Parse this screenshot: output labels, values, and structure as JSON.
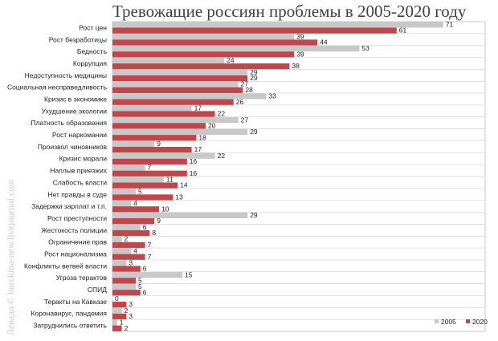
{
  "chart_data": {
    "type": "bar",
    "orientation": "horizontal",
    "title": "Тревожащие россиян проблемы в 2005-2020 году",
    "watermark": "Левада © burckina-new.livejournal.com",
    "categories": [
      "Рост цен",
      "Рост безработицы",
      "Бедность",
      "Коррупция",
      "Недоступность медицины",
      "Социальная несправедливость",
      "Кризис в экономике",
      "Ухудшение экологии",
      "Платность образования",
      "Рост наркомании",
      "Произвол чиновников",
      "Кризис морали",
      "Наплыв приезжих",
      "Слабость власти",
      "Нет правды в суде",
      "Задержки зарплат и т.п.",
      "Рост преступности",
      "Жестокость полиции",
      "Ограничение прав",
      "Рост национализма",
      "Конфликты ветвей власти",
      "Угроза терактов",
      "СПИД",
      "Теракты на Кавказе",
      "Коронавирус, пандемия",
      "Затруднились ответить"
    ],
    "series": [
      {
        "name": "2005",
        "color": "#c8c8c8",
        "values": [
          71,
          39,
          53,
          24,
          29,
          27,
          33,
          17,
          27,
          29,
          9,
          22,
          7,
          11,
          5,
          4,
          29,
          6,
          2,
          4,
          3,
          15,
          5,
          0,
          2,
          1
        ]
      },
      {
        "name": "2020",
        "color": "#c0464b",
        "values": [
          61,
          44,
          39,
          38,
          29,
          28,
          26,
          22,
          20,
          18,
          17,
          16,
          16,
          14,
          13,
          10,
          9,
          8,
          7,
          7,
          6,
          5,
          6,
          3,
          3,
          2
        ]
      }
    ],
    "xlim": [
      0,
      80
    ],
    "grid": true,
    "legend": "bottom-right"
  }
}
